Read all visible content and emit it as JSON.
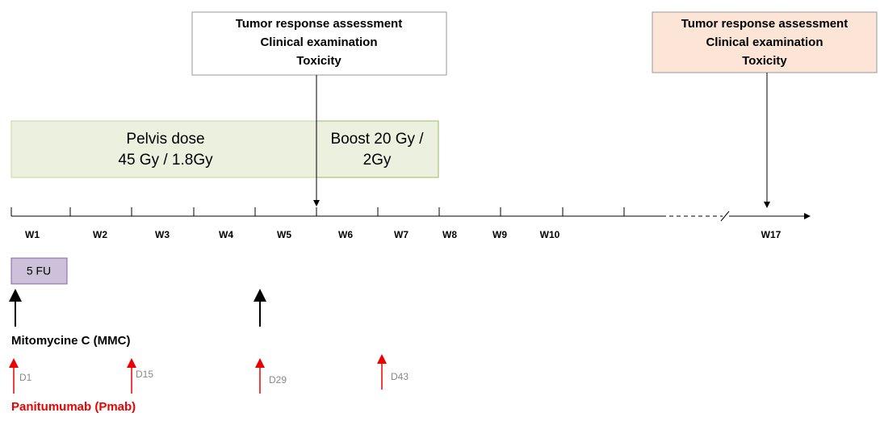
{
  "assessment_boxes": [
    {
      "lines": [
        "Tumor response assessment",
        "Clinical examination",
        "Toxicity"
      ]
    },
    {
      "lines": [
        "Tumor response assessment",
        "Clinical examination",
        "Toxicity"
      ]
    }
  ],
  "radiotherapy": {
    "pelvis": [
      "Pelvis dose",
      "45 Gy / 1.8Gy"
    ],
    "boost": [
      "Boost 20 Gy /",
      "2Gy"
    ]
  },
  "weeks": [
    "W1",
    "W2",
    "W3",
    "W4",
    "W5",
    "W6",
    "W7",
    "W8",
    "W9",
    "W10",
    "W17"
  ],
  "chemo": {
    "five_fu": "5 FU",
    "mmc": "Mitomycine C (MMC)"
  },
  "panitumumab": {
    "days": [
      "D1",
      "D15",
      "D29",
      "D43"
    ],
    "label": "Panitumumab (Pmab)"
  }
}
